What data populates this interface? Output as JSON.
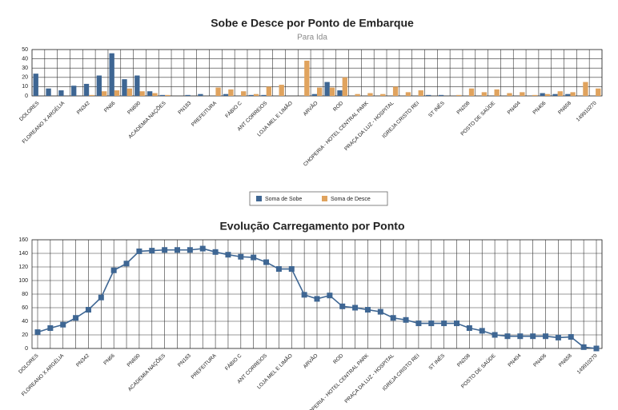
{
  "chart_data": [
    {
      "type": "bar",
      "title": "Sobe e Desce por Ponto de Embarque",
      "subtitle": "Para Ida",
      "categories": [
        "DOLORES",
        null,
        "FLOREANO X ARGÉLIA",
        null,
        "PN342",
        null,
        "PN66",
        null,
        "PN690",
        null,
        "ACADEMIA NAÇÕES",
        null,
        "PN183",
        null,
        "PREFEITURA",
        null,
        "FÁBIO C",
        null,
        "ANT CORREIOS",
        null,
        "LOJA MEL E LIMÃO",
        null,
        "ARVÃO",
        null,
        "ROD",
        null,
        "CHOPERIA - HOTEL CENTRAL PARK",
        null,
        "PRAÇA DA LUZ - HOSPITAL",
        null,
        "IGREJA CRISTO REI",
        null,
        "ST INÊS",
        null,
        "PN208",
        null,
        "POSTO DE SAÚDE",
        null,
        "PN404",
        null,
        "PN406",
        null,
        "PN658",
        null,
        "149910270"
      ],
      "series": [
        {
          "name": "Soma de Sobe",
          "color": "#3e6693",
          "values": [
            24,
            8,
            6,
            11,
            13,
            22,
            46,
            18,
            22,
            5,
            1,
            0,
            1,
            2,
            0,
            2,
            0,
            1,
            1,
            0,
            0,
            0,
            2,
            15,
            6,
            0,
            0,
            0,
            0,
            0,
            0,
            1,
            1,
            0,
            0,
            0,
            0,
            0,
            0,
            0,
            3,
            2,
            2,
            0,
            0
          ]
        },
        {
          "name": "Soma de Desce",
          "color": "#e0a35e",
          "values": [
            0,
            0,
            0,
            0,
            1,
            5,
            6,
            8,
            5,
            3,
            1,
            0,
            0,
            0,
            9,
            7,
            5,
            2,
            10,
            12,
            0,
            38,
            9,
            9,
            20,
            2,
            3,
            2,
            10,
            4,
            6,
            0,
            0,
            1,
            8,
            4,
            7,
            3,
            4,
            1,
            2,
            5,
            4,
            15,
            8
          ]
        }
      ],
      "ylim": [
        0,
        50
      ],
      "yticks": [
        0,
        10,
        20,
        30,
        40,
        50
      ],
      "grid": true,
      "legend": "bottom"
    },
    {
      "type": "line",
      "title": "Evolução Carregamento por Ponto",
      "categories": [
        "DOLORES",
        null,
        "FLOREANO X ARGÉLIA",
        null,
        "PN342",
        null,
        "PN66",
        null,
        "PN690",
        null,
        "ACADEMIA NAÇÕES",
        null,
        "PN183",
        null,
        "PREFEITURA",
        null,
        "FÁBIO C",
        null,
        "ANT CORREIOS",
        null,
        "LOJA MEL E LIMÃO",
        null,
        "ARVÃO",
        null,
        "ROD",
        null,
        "CHOPERIA - HOTEL CENTRAL PARK",
        null,
        "PRAÇA DA LUZ - HOSPITAL",
        null,
        "IGREJA CRISTO REI",
        null,
        "ST INÊS",
        null,
        "PN208",
        null,
        "POSTO DE SAÚDE",
        null,
        "PN404",
        null,
        "PN406",
        null,
        "PN658",
        null,
        "149910270"
      ],
      "values": [
        24,
        30,
        35,
        45,
        57,
        75,
        115,
        125,
        143,
        144,
        145,
        145,
        145,
        147,
        142,
        138,
        135,
        134,
        127,
        117,
        117,
        79,
        73,
        78,
        62,
        60,
        57,
        54,
        45,
        42,
        37,
        37,
        37,
        37,
        30,
        26,
        20,
        18,
        18,
        18,
        18,
        16,
        17,
        2,
        0
      ],
      "color": "#3e6693",
      "ylim": [
        0,
        160
      ],
      "yticks": [
        0,
        20,
        40,
        60,
        80,
        100,
        120,
        140,
        160
      ],
      "grid": true
    }
  ]
}
